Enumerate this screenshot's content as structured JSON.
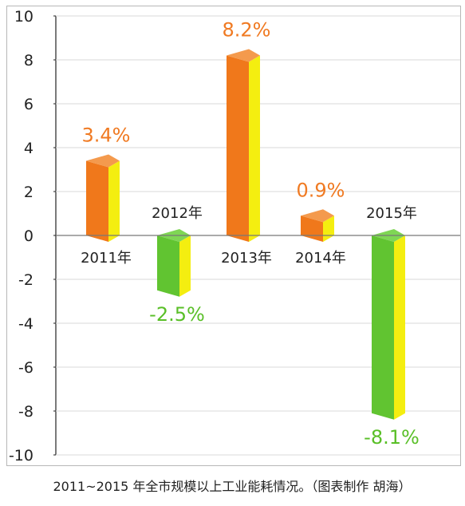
{
  "caption": "2011~2015 年全市规模以上工业能耗情况。（图表制作 胡海）",
  "chart_data": {
    "type": "bar",
    "categories": [
      "2011年",
      "2012年",
      "2013年",
      "2014年",
      "2015年"
    ],
    "values": [
      3.4,
      -2.5,
      8.2,
      0.9,
      -8.1
    ],
    "value_labels": [
      "3.4%",
      "-2.5%",
      "8.2%",
      "0.9%",
      "-8.1%"
    ],
    "ylim": [
      -10,
      10
    ],
    "yticks": [
      "10",
      "8",
      "6",
      "4",
      "2",
      "0",
      "-2",
      "-4",
      "-6",
      "-8",
      "-10"
    ],
    "grid": true,
    "legend": "none",
    "colors": {
      "positive_front": "#f0781b",
      "positive_top": "#f49a4d",
      "positive_label": "#f07a22",
      "negative_front": "#61c431",
      "negative_top": "#7fd654",
      "negative_label": "#59bf27",
      "side": "#f4ee10",
      "grid": "#d9d9d9",
      "zero_line": "#777777",
      "axis": "#222222",
      "frame": "#b7b7b7"
    }
  }
}
